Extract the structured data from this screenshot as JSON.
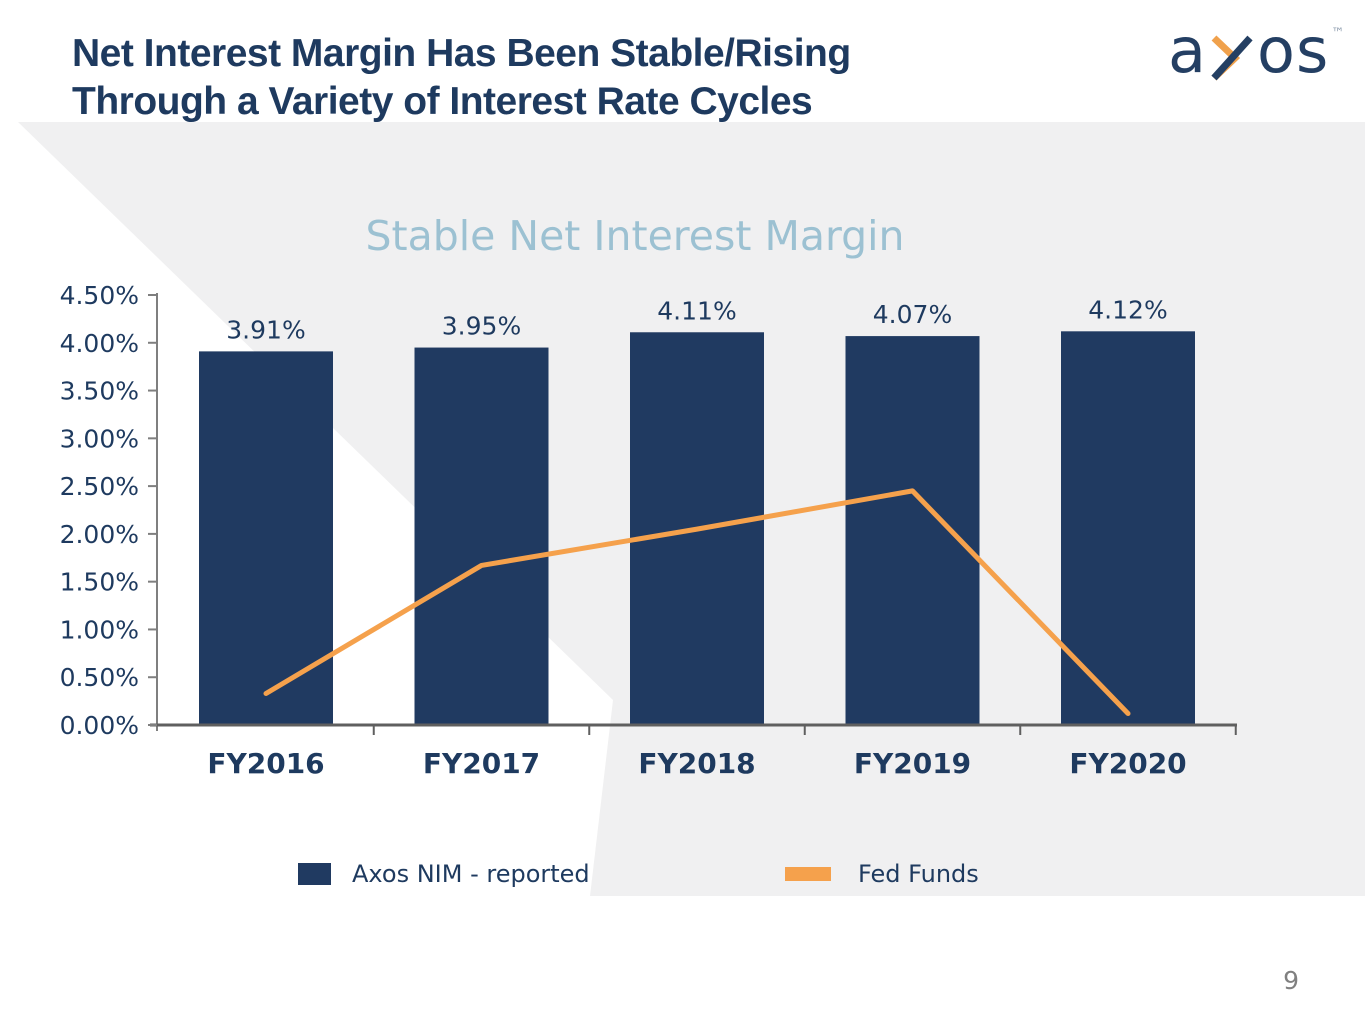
{
  "header": {
    "title_line1": "Net Interest Margin Has Been Stable/Rising",
    "title_line2": "Through a Variety of Interest Rate Cycles"
  },
  "logo": {
    "letter_a": "a",
    "letter_o": "o",
    "letter_s": "s",
    "trademark": "™",
    "navy": "#243f63",
    "orange": "#f0a14c"
  },
  "page_number": "9",
  "chart_data": {
    "type": "bar",
    "title": "Stable Net Interest Margin",
    "categories": [
      "FY2016",
      "FY2017",
      "FY2018",
      "FY2019",
      "FY2020"
    ],
    "series": [
      {
        "name": "Axos NIM - reported",
        "type": "bar",
        "values": [
          3.91,
          3.95,
          4.11,
          4.07,
          4.12
        ],
        "labels": [
          "3.91%",
          "3.95%",
          "4.11%",
          "4.07%",
          "4.12%"
        ],
        "color": "#203a61"
      },
      {
        "name": "Fed Funds",
        "type": "line",
        "values": [
          0.33,
          1.67,
          2.05,
          2.45,
          0.12
        ],
        "color": "#f5a14c"
      }
    ],
    "y_axis": {
      "min": 0,
      "max": 4.5,
      "step": 0.5,
      "tick_labels": [
        "0.00%",
        "0.50%",
        "1.00%",
        "1.50%",
        "2.00%",
        "2.50%",
        "3.00%",
        "3.50%",
        "4.00%",
        "4.50%"
      ]
    },
    "grid": false,
    "legend_position": "bottom",
    "legend": [
      {
        "label": "Axos NIM - reported",
        "color": "#203a61",
        "shape": "square"
      },
      {
        "label": "Fed Funds",
        "color": "#f5a14c",
        "shape": "line"
      }
    ],
    "colors": {
      "bar": "#203a61",
      "line": "#f5a14c",
      "axis": "#5f5f5f",
      "tick": "#7f7f7f",
      "label_text": "#1e3a5f",
      "title_text": "#9cc1d2"
    }
  }
}
